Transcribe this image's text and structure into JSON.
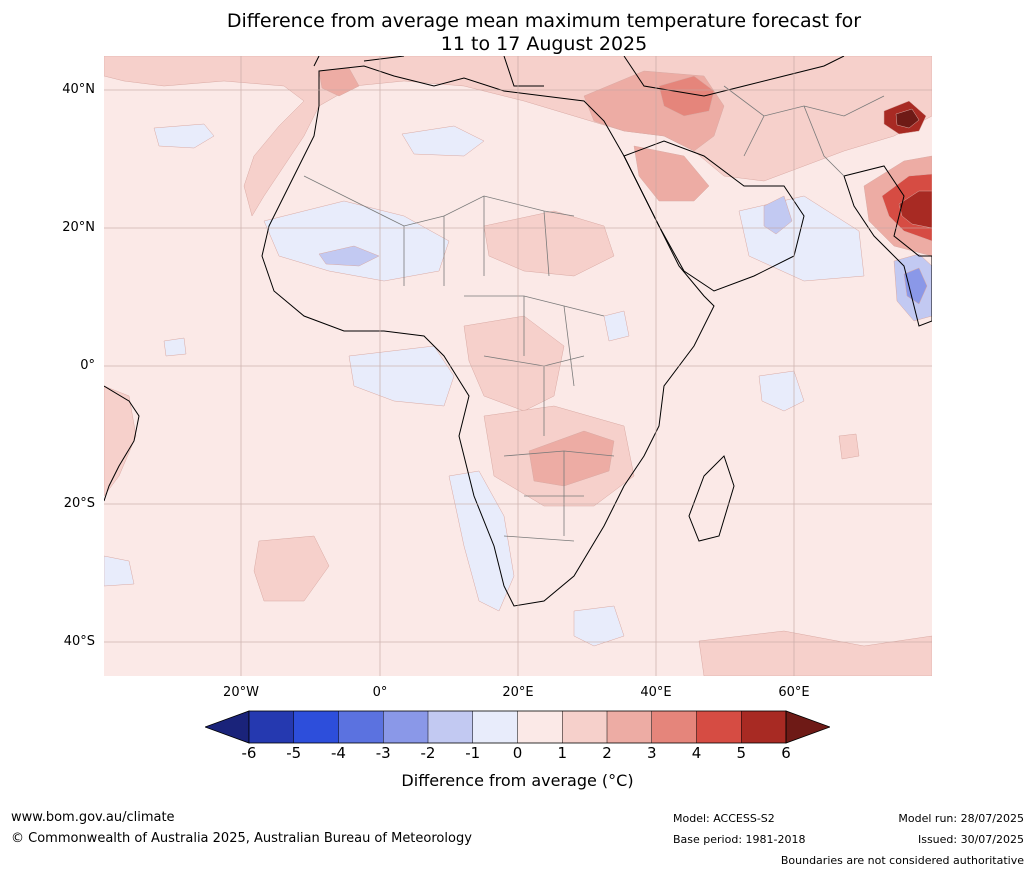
{
  "title": {
    "line1": "Difference from average mean maximum temperature forecast for",
    "line2": "11 to 17 August 2025"
  },
  "map": {
    "lat_labels": [
      "40°N",
      "20°N",
      "0°",
      "20°S",
      "40°S"
    ],
    "lon_labels": [
      "20°W",
      "0°",
      "20°E",
      "40°E",
      "60°E"
    ],
    "colors": {
      "base_anomaly_0_1": "#fbe9e7",
      "pos_1_2": "#f6d0cb",
      "pos_2_3": "#edaca4",
      "pos_3_4": "#e5857b",
      "pos_4_5": "#d64c43",
      "pos_5_6": "#a82a23",
      "pos_over_6": "#6e1a16",
      "neg_0_m1": "#e8ecfb",
      "neg_m1_m2": "#c2c9f2",
      "neg_m2_m3": "#8a98e8",
      "neg_m3_m4": "#5b72e0",
      "neg_m4_m5": "#2d4edb",
      "neg_m5_m6": "#2539b0",
      "neg_under_m6": "#1a237a",
      "coastline": "#000000",
      "border": "#7a7a7a",
      "gridline": "#c4a7a3"
    }
  },
  "colorbar": {
    "ticks": [
      "-6",
      "-5",
      "-4",
      "-3",
      "-2",
      "-1",
      "0",
      "1",
      "2",
      "3",
      "4",
      "5",
      "6"
    ],
    "colors": [
      "#2539b0",
      "#2d4edb",
      "#5b72e0",
      "#8a98e8",
      "#c2c9f2",
      "#e8ecfb",
      "#fbe9e7",
      "#f6d0cb",
      "#edaca4",
      "#e5857b",
      "#d64c43",
      "#a82a23"
    ],
    "under_color": "#1a237a",
    "over_color": "#6e1a16",
    "label": "Difference from average ($^\\circ$C)",
    "label_display": "Difference from average (°C)"
  },
  "footer": {
    "website": "www.bom.gov.au/climate",
    "copyright": "© Commonwealth of Australia 2025, Australian Bureau of Meteorology",
    "model": "Model: ACCESS-S2",
    "base_period": "Base period: 1981-2018",
    "model_run": "Model run: 28/07/2025",
    "issued": "Issued: 30/07/2025",
    "disclaimer": "Boundaries are not considered authoritative"
  }
}
